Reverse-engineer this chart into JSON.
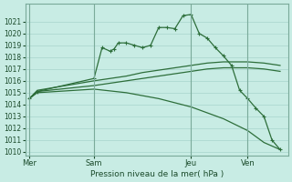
{
  "bg_color": "#c8ece4",
  "grid_color": "#a8d4cc",
  "line_color": "#2d6e3a",
  "ylim": [
    1010,
    1022
  ],
  "yticks": [
    1010,
    1011,
    1012,
    1013,
    1014,
    1015,
    1016,
    1017,
    1018,
    1019,
    1020,
    1021
  ],
  "xlabel": "Pression niveau de la mer( hPa )",
  "day_labels": [
    "Mer",
    "Sam",
    "Jeu",
    "Ven"
  ],
  "day_positions": [
    0,
    8,
    20,
    27
  ],
  "xlim": [
    -0.5,
    32
  ],
  "series1_x": [
    0,
    1,
    8,
    9,
    10,
    10.5,
    11,
    12,
    13,
    14,
    15,
    16,
    17,
    18,
    19,
    20,
    21,
    22,
    23,
    24,
    25,
    26,
    27,
    28,
    29,
    30,
    31
  ],
  "series1_y": [
    1014.5,
    1015.1,
    1016.2,
    1018.8,
    1018.5,
    1018.7,
    1019.2,
    1019.2,
    1019.0,
    1018.8,
    1019.0,
    1020.5,
    1020.5,
    1020.4,
    1021.5,
    1021.6,
    1020.0,
    1019.6,
    1018.8,
    1018.1,
    1017.3,
    1015.2,
    1014.5,
    1013.7,
    1013.0,
    1011.0,
    1010.2
  ],
  "series1_has_markers": true,
  "series2_x": [
    0,
    1,
    8,
    10,
    12,
    14,
    16,
    18,
    20,
    22,
    24,
    27,
    29,
    31
  ],
  "series2_y": [
    1014.5,
    1015.2,
    1016.0,
    1016.2,
    1016.4,
    1016.7,
    1016.9,
    1017.1,
    1017.3,
    1017.5,
    1017.6,
    1017.6,
    1017.5,
    1017.3
  ],
  "series2_has_markers": false,
  "series3_x": [
    0,
    1,
    8,
    10,
    12,
    14,
    16,
    18,
    20,
    22,
    24,
    27,
    29,
    31
  ],
  "series3_y": [
    1014.5,
    1015.1,
    1015.6,
    1015.8,
    1016.0,
    1016.2,
    1016.4,
    1016.6,
    1016.8,
    1017.0,
    1017.1,
    1017.1,
    1017.0,
    1016.8
  ],
  "series3_has_markers": false,
  "series4_x": [
    0,
    1,
    8,
    12,
    16,
    20,
    24,
    27,
    29,
    31
  ],
  "series4_y": [
    1014.5,
    1015.0,
    1015.3,
    1015.0,
    1014.5,
    1013.8,
    1012.8,
    1011.8,
    1010.8,
    1010.2
  ],
  "series4_has_markers": false
}
